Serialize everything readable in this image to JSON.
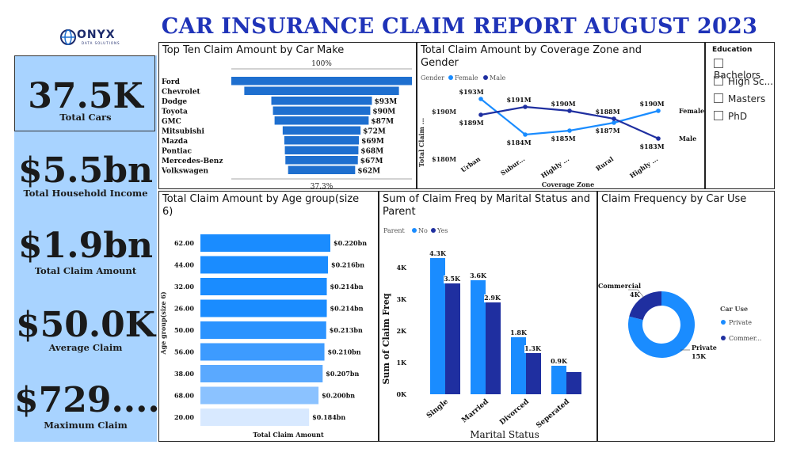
{
  "title": "CAR INSURANCE CLAIM REPORT AUGUST 2023",
  "logo": {
    "name": "ONYX",
    "sub": "DATA SOLUTIONS"
  },
  "kpis": [
    {
      "value": "37.5K",
      "label": "Total Cars"
    },
    {
      "value": "$5.5bn",
      "label": "Total Household Income"
    },
    {
      "value": "$1.9bn",
      "label": "Total Claim Amount"
    },
    {
      "value": "$50.0K",
      "label": "Average Claim"
    },
    {
      "value": "$729....",
      "label": "Maximum Claim"
    }
  ],
  "slicer": {
    "title": "Education",
    "items": [
      "Bachelors",
      "High Sc...",
      "Masters",
      "PhD"
    ]
  },
  "colors": {
    "dark": "#1f2fa0",
    "mid": "#1e6fcf",
    "light": "#1a8cff",
    "pale": "#a8d3ff"
  },
  "chart_data": [
    {
      "type": "bar",
      "title": "Top Ten Claim Amount by Car Make",
      "categories": [
        "Ford",
        "Chevrolet",
        "Dodge",
        "Toyota",
        "GMC",
        "Mitsubishi",
        "Mazda",
        "Pontiac",
        "Mercedes-Benz",
        "Volkswagen"
      ],
      "values": [
        167,
        143,
        93,
        90,
        87,
        72,
        69,
        68,
        67,
        62
      ],
      "data_labels": [
        "",
        "",
        "$93M",
        "$90M",
        "$87M",
        "$72M",
        "$69M",
        "$68M",
        "$67M",
        "$62M"
      ],
      "top_label": "100%",
      "bottom_label": "37.3%"
    },
    {
      "type": "line",
      "title": "Total Claim Amount by Coverage Zone and Gender",
      "legend_title": "Gender",
      "xlabel": "Coverage Zone",
      "ylabel": "Total Claim ...",
      "categories": [
        "Urban",
        "Subur...",
        "Highly ...",
        "Rural",
        "Highly ..."
      ],
      "series": [
        {
          "name": "Female",
          "values": [
            193,
            184,
            185,
            187,
            190
          ],
          "labels": [
            "$193M",
            "$184M",
            "$185M",
            "$187M",
            "$190M"
          ],
          "end_label": "Female"
        },
        {
          "name": "Male",
          "values": [
            189,
            191,
            190,
            188,
            183
          ],
          "labels": [
            "$189M",
            "$191M",
            "$190M",
            "$188M",
            "$183M"
          ],
          "end_label": "Male"
        }
      ],
      "axis_ticks": [
        "$190M",
        "$180M"
      ],
      "ylim": [
        179,
        195
      ]
    },
    {
      "type": "bar",
      "title": "Total Claim Amount by Age group(size 6)",
      "xlabel": "Total Claim Amount",
      "ylabel": "Age group(size 6)",
      "categories": [
        "62.00",
        "44.00",
        "32.00",
        "26.00",
        "50.00",
        "56.00",
        "38.00",
        "68.00",
        "20.00"
      ],
      "values": [
        0.22,
        0.216,
        0.214,
        0.214,
        0.213,
        0.21,
        0.207,
        0.2,
        0.184
      ],
      "data_labels": [
        "$0.220bn",
        "$0.216bn",
        "$0.214bn",
        "$0.214bn",
        "$0.213bn",
        "$0.210bn",
        "$0.207bn",
        "$0.200bn",
        "$0.184bn"
      ]
    },
    {
      "type": "bar",
      "title": "Sum of Claim Freq by Marital Status and Parent",
      "legend_title": "Parent",
      "xlabel": "Marital Status",
      "ylabel": "Sum of Claim Freq",
      "categories": [
        "Single",
        "Married",
        "Divorced",
        "Seperated"
      ],
      "series": [
        {
          "name": "No",
          "values": [
            4.3,
            3.6,
            1.8,
            0.9
          ],
          "labels": [
            "4.3K",
            "3.6K",
            "1.8K",
            "0.9K"
          ]
        },
        {
          "name": "Yes",
          "values": [
            3.5,
            2.9,
            1.3,
            0.7
          ],
          "labels": [
            "3.5K",
            "2.9K",
            "1.3K",
            ""
          ]
        }
      ],
      "yticks": [
        "0K",
        "1K",
        "2K",
        "3K",
        "4K"
      ],
      "ylim": [
        0,
        4.5
      ]
    },
    {
      "type": "pie",
      "title": "Claim Frequency by Car Use",
      "legend_title": "Car Use",
      "slices": [
        {
          "name": "Private",
          "value": 15,
          "label": "15K",
          "legend": "Private"
        },
        {
          "name": "Commercial",
          "value": 4,
          "label": "4K",
          "legend": "Commer..."
        }
      ]
    }
  ]
}
